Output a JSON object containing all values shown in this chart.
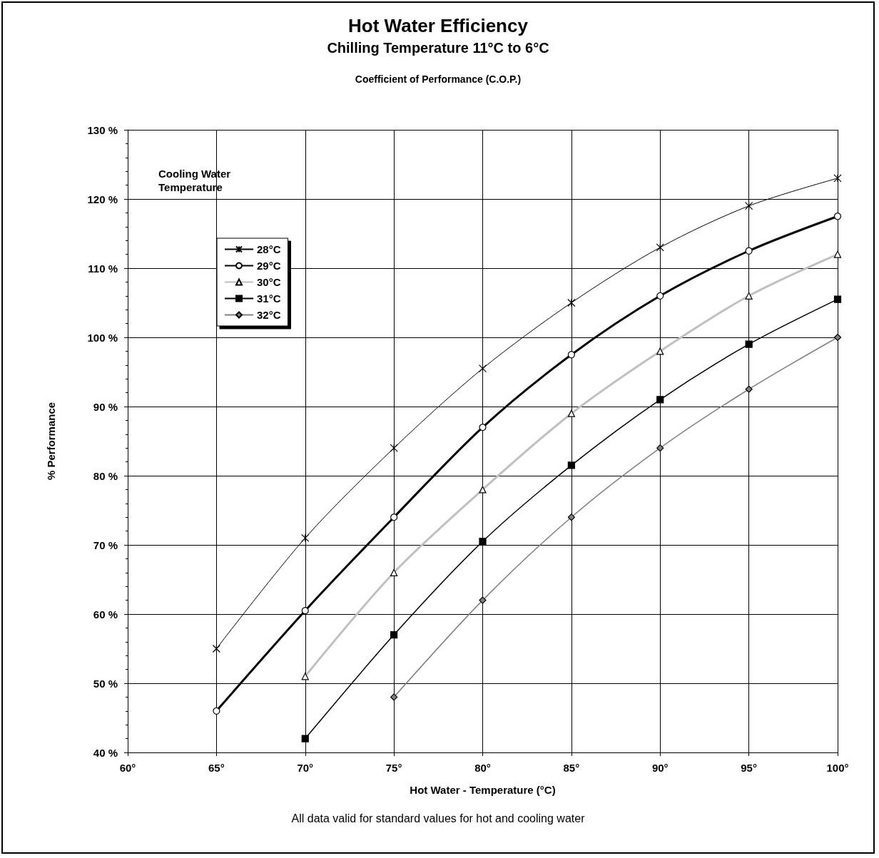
{
  "chart_data": {
    "type": "line",
    "title": "Hot Water Efficiency",
    "subtitle": "Chilling Temperature 11°C to 6°C",
    "xlabel": "Hot Water - Temperature (°C)",
    "ylabel": "% Performance",
    "legend_title": "Cooling Water Temperature",
    "annotations": [
      "Coefficient of Performance (C.O.P.)",
      "All data valid for standard values for hot and cooling water"
    ],
    "xlim": [
      60,
      100
    ],
    "xticks": [
      {
        "value": 60,
        "label": "60°"
      },
      {
        "value": 65,
        "label": "65°"
      },
      {
        "value": 70,
        "label": "70°"
      },
      {
        "value": 75,
        "label": "75°"
      },
      {
        "value": 80,
        "label": "80°"
      },
      {
        "value": 85,
        "label": "85°"
      },
      {
        "value": 90,
        "label": "90°"
      },
      {
        "value": 95,
        "label": "95°"
      },
      {
        "value": 100,
        "label": "100°"
      }
    ],
    "ylim": [
      40,
      130
    ],
    "yticks": [
      {
        "value": 40,
        "label": "40 %"
      },
      {
        "value": 50,
        "label": "50 %"
      },
      {
        "value": 60,
        "label": "60 %"
      },
      {
        "value": 70,
        "label": "70 %"
      },
      {
        "value": 80,
        "label": "80 %"
      },
      {
        "value": 90,
        "label": "90 %"
      },
      {
        "value": 100,
        "label": "100 %"
      },
      {
        "value": 110,
        "label": "110 %"
      },
      {
        "value": 120,
        "label": "120 %"
      },
      {
        "value": 130,
        "label": "130 %"
      }
    ],
    "grid": true,
    "legend": "top left",
    "series": [
      {
        "name": "28°C",
        "color": "#000000",
        "marker": "cross",
        "x": [
          65,
          70,
          75,
          80,
          85,
          90,
          95,
          100
        ],
        "values": [
          55,
          71,
          84,
          95.5,
          105,
          113,
          119,
          123
        ]
      },
      {
        "name": "29°C",
        "color": "#000000",
        "marker": "circle",
        "x": [
          65,
          70,
          75,
          80,
          85,
          90,
          95,
          100
        ],
        "values": [
          46,
          60.5,
          74,
          87,
          97.5,
          106,
          112.5,
          117.5
        ]
      },
      {
        "name": "30°C",
        "color": "#c0c0c0",
        "marker": "triangle",
        "x": [
          70,
          75,
          80,
          85,
          90,
          95,
          100
        ],
        "values": [
          51,
          66,
          78,
          89,
          98,
          106,
          112
        ]
      },
      {
        "name": "31°C",
        "color": "#000000",
        "marker": "square",
        "x": [
          70,
          75,
          80,
          85,
          90,
          95,
          100
        ],
        "values": [
          42,
          57,
          70.5,
          81.5,
          91,
          99,
          105.5
        ]
      },
      {
        "name": "32°C",
        "color": "#808080",
        "marker": "diamond",
        "x": [
          75,
          80,
          85,
          90,
          95,
          100
        ],
        "values": [
          48,
          62,
          74,
          84,
          92.5,
          100
        ]
      }
    ]
  }
}
